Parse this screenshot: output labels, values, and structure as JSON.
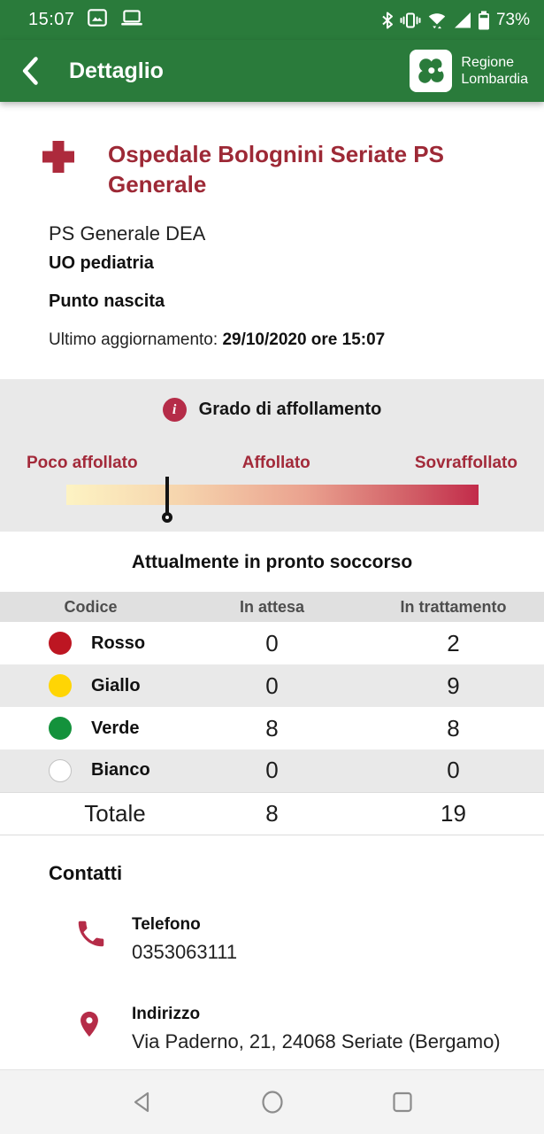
{
  "status_bar": {
    "time": "15:07",
    "battery": "73%"
  },
  "header": {
    "title": "Dettaglio",
    "logo_line1": "Regione",
    "logo_line2": "Lombardia"
  },
  "hospital": {
    "name": "Ospedale Bolognini Seriate PS Generale",
    "type": "PS Generale DEA",
    "unit": "UO pediatria",
    "feature": "Punto nascita",
    "updated_label": "Ultimo aggiornamento: ",
    "updated_value": "29/10/2020 ore 15:07"
  },
  "crowding": {
    "title": "Grado di affollamento",
    "labels": [
      "Poco affollato",
      "Affollato",
      "Sovraffollato"
    ],
    "marker_percent": 24.5,
    "gradient_start": "#fdf3c3",
    "gradient_end": "#c22b4a"
  },
  "er_table": {
    "title": "Attualmente in pronto soccorso",
    "columns": [
      "Codice",
      "In attesa",
      "In trattamento"
    ],
    "rows": [
      {
        "code": "Rosso",
        "color": "#bd1622",
        "waiting": "0",
        "in_treatment": "2"
      },
      {
        "code": "Giallo",
        "color": "#ffd504",
        "waiting": "0",
        "in_treatment": "9"
      },
      {
        "code": "Verde",
        "color": "#14923c",
        "waiting": "8",
        "in_treatment": "8"
      },
      {
        "code": "Bianco",
        "color": "#ffffff",
        "waiting": "0",
        "in_treatment": "0"
      }
    ],
    "total": {
      "label": "Totale",
      "waiting": "8",
      "in_treatment": "19"
    }
  },
  "contacts": {
    "title": "Contatti",
    "phone_label": "Telefono",
    "phone_value": "0353063111",
    "address_label": "Indirizzo",
    "address_value": "Via Paderno, 21, 24068 Seriate (Bergamo)"
  },
  "colors": {
    "brand_green": "#2a7b3b",
    "accent_red": "#b52c48",
    "title_red": "#9d2936",
    "panel_gray": "#e9e9e9"
  }
}
